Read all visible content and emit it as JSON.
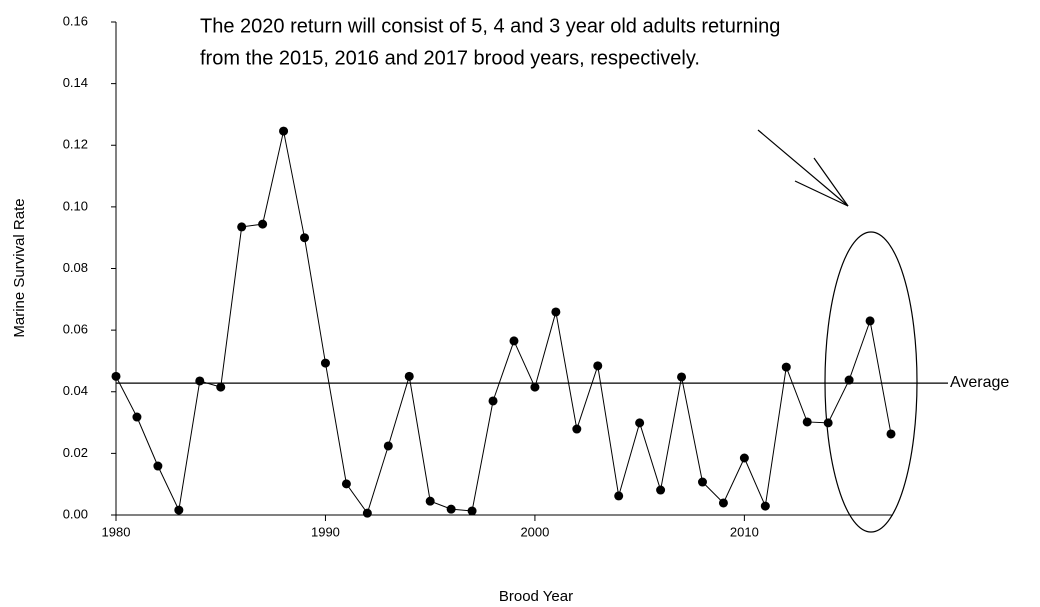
{
  "chart_data": {
    "type": "line",
    "x_label": "Brood Year",
    "y_label": "Marine Survival Rate",
    "annotation": [
      "The 2020 return will consist of 5, 4 and 3 year old adults returning",
      "from the 2015, 2016 and 2017 brood years, respectively."
    ],
    "x": [
      1980,
      1981,
      1982,
      1983,
      1984,
      1985,
      1986,
      1987,
      1988,
      1989,
      1990,
      1991,
      1992,
      1993,
      1994,
      1995,
      1996,
      1997,
      1998,
      1999,
      2000,
      2001,
      2002,
      2003,
      2004,
      2005,
      2006,
      2007,
      2008,
      2009,
      2010,
      2011,
      2012,
      2013,
      2014,
      2015,
      2016,
      2017
    ],
    "values": [
      0.045,
      0.0318,
      0.0159,
      0.0016,
      0.0435,
      0.0415,
      0.0935,
      0.0944,
      0.1246,
      0.09,
      0.0493,
      0.0101,
      0.0006,
      0.0224,
      0.045,
      0.0045,
      0.0019,
      0.0013,
      0.037,
      0.0565,
      0.0415,
      0.0659,
      0.0279,
      0.0484,
      0.0062,
      0.0299,
      0.0081,
      0.0448,
      0.0107,
      0.0039,
      0.0185,
      0.0029,
      0.048,
      0.0302,
      0.0299,
      0.0438,
      0.063,
      0.0263
    ],
    "color": "#000000",
    "average": 0.0428,
    "average_label": "Average",
    "xlim": [
      1980,
      2017
    ],
    "ylim": [
      0,
      0.16
    ],
    "xticks": [
      1980,
      1990,
      2000,
      2010
    ],
    "yticks": [
      {
        "value": 0,
        "label": "0.00"
      },
      {
        "value": 0.02,
        "label": "0.02"
      },
      {
        "value": 0.04,
        "label": "0.04"
      },
      {
        "value": 0.06,
        "label": "0.06"
      },
      {
        "value": 0.08,
        "label": "0.08"
      },
      {
        "value": 0.1,
        "label": "0.10"
      },
      {
        "value": 0.12,
        "label": "0.12"
      },
      {
        "value": 0.14,
        "label": "0.14"
      },
      {
        "value": 0.16,
        "label": "0.16"
      }
    ]
  }
}
